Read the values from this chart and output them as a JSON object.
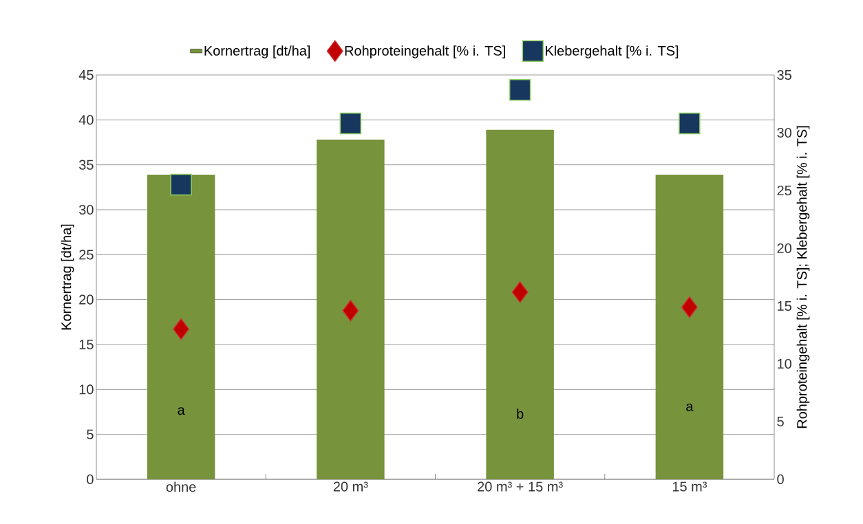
{
  "chart_data": {
    "type": "bar",
    "categories": [
      "ohne",
      "20 m³",
      "20 m³ + 15 m³",
      "15 m³"
    ],
    "series": [
      {
        "name": "Kornertrag [dt/ha]",
        "color": "#77933c",
        "values": [
          33.9,
          37.8,
          38.9,
          33.9
        ]
      },
      {
        "name": "Rohproteingehalt [% i. TS]",
        "type": "scatter",
        "axis": "y2",
        "marker": "diamond",
        "color": "#c00000",
        "values": [
          13.0,
          14.6,
          16.2,
          14.9
        ]
      },
      {
        "name": "Klebergehalt [% i. TS]",
        "type": "scatter",
        "axis": "y2",
        "marker": "square",
        "color": "#17375e",
        "values": [
          25.5,
          30.8,
          33.7,
          30.8
        ]
      }
    ],
    "ylabel": "Kornertrag [dt/ha]",
    "y2label": "Rohproteingehalt [% i. TS]; Klebergehalt [% i. TS]",
    "ylim": [
      0,
      45
    ],
    "yticks": [
      0,
      5,
      10,
      15,
      20,
      25,
      30,
      35,
      40,
      45
    ],
    "y2lim": [
      0,
      35
    ],
    "y2ticks": [
      0,
      5,
      10,
      15,
      20,
      25,
      30,
      35
    ],
    "annotations": [
      "a",
      "b",
      "a"
    ],
    "grid": "y",
    "legend": "top"
  }
}
